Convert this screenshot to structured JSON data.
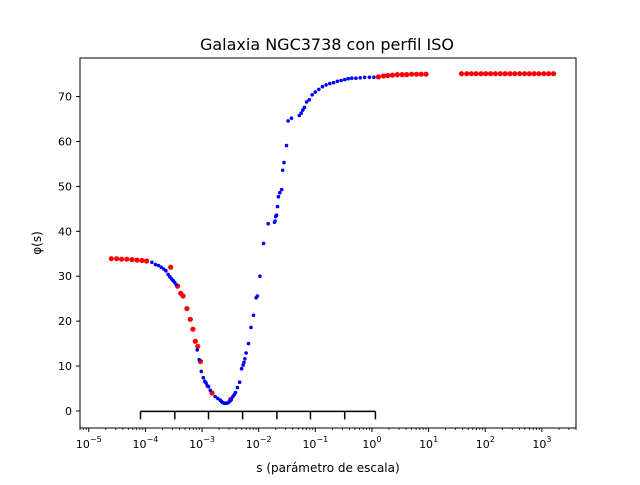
{
  "chart_data": {
    "type": "scatter",
    "title": "Galaxia NGC3738 con perfil ISO",
    "xlabel": "s (parámetro de escala)",
    "ylabel": "φ(s)",
    "xscale": "log",
    "xlim": [
      7e-06,
      4000.0
    ],
    "ylim": [
      -3.8,
      78.6
    ],
    "xticks": [
      {
        "value": 1e-05,
        "base": "10",
        "exp": "−5"
      },
      {
        "value": 0.0001,
        "base": "10",
        "exp": "−4"
      },
      {
        "value": 0.001,
        "base": "10",
        "exp": "−3"
      },
      {
        "value": 0.01,
        "base": "10",
        "exp": "−2"
      },
      {
        "value": 0.1,
        "base": "10",
        "exp": "−1"
      },
      {
        "value": 1.0,
        "base": "10",
        "exp": "0"
      },
      {
        "value": 10.0,
        "base": "10",
        "exp": "1"
      },
      {
        "value": 100.0,
        "base": "10",
        "exp": "2"
      },
      {
        "value": 1000.0,
        "base": "10",
        "exp": "3"
      }
    ],
    "yticks": [
      {
        "value": 0,
        "label": "0"
      },
      {
        "value": 10,
        "label": "10"
      },
      {
        "value": 20,
        "label": "20"
      },
      {
        "value": 30,
        "label": "30"
      },
      {
        "value": 40,
        "label": "40"
      },
      {
        "value": 50,
        "label": "50"
      },
      {
        "value": 60,
        "label": "60"
      },
      {
        "value": 70,
        "label": "70"
      }
    ],
    "grid": false,
    "colors": {
      "red_points": "#ff0000",
      "blue_points": "#0000ff",
      "axes": "#000000"
    },
    "series": [
      {
        "color": "#ff0000",
        "marker": "large-dot",
        "x": [
          2.5e-05,
          3.1e-05,
          3.8e-05,
          4.7e-05,
          5.8e-05,
          7.1e-05,
          8.7e-05,
          0.000105,
          0.00028,
          0.00037,
          0.00042,
          0.00046,
          0.00054,
          0.00062,
          0.00069,
          0.00076,
          0.00084,
          0.00094,
          0.0015,
          0.0032,
          1.3,
          1.6,
          1.9,
          2.3,
          2.8,
          3.4,
          4.1,
          5.0,
          6.1,
          7.4,
          9.0,
          38,
          47,
          57,
          69,
          84,
          102,
          124,
          151,
          184,
          224,
          273,
          332,
          404,
          492,
          599,
          729,
          887,
          1080,
          1315,
          1600
        ],
        "y": [
          33.9,
          33.9,
          33.8,
          33.8,
          33.7,
          33.6,
          33.5,
          33.4,
          32.0,
          27.8,
          26.2,
          25.6,
          22.8,
          20.4,
          18.2,
          15.5,
          14.4,
          11.0,
          4.0,
          2.6,
          74.4,
          74.6,
          74.7,
          74.8,
          74.9,
          74.9,
          74.9,
          75.0,
          75.0,
          75.0,
          75.0,
          75.1,
          75.1,
          75.1,
          75.1,
          75.1,
          75.1,
          75.1,
          75.1,
          75.1,
          75.1,
          75.1,
          75.1,
          75.1,
          75.1,
          75.1,
          75.1,
          75.1,
          75.1,
          75.1,
          75.1
        ]
      },
      {
        "color": "#0000ff",
        "marker": "small-dot",
        "x": [
          0.00013,
          0.00015,
          0.00017,
          0.00019,
          0.00021,
          0.00023,
          0.00025,
          0.00027,
          0.00029,
          0.00031,
          0.00033,
          0.00035,
          0.00082,
          0.00089,
          0.00097,
          0.00105,
          0.00112,
          0.00118,
          0.00124,
          0.0013,
          0.0014,
          0.0017,
          0.0019,
          0.0021,
          0.0022,
          0.0023,
          0.0024,
          0.0025,
          0.0026,
          0.0027,
          0.0028,
          0.0029,
          0.003,
          0.0031,
          0.0033,
          0.0035,
          0.0037,
          0.0039,
          0.0042,
          0.0046,
          0.005,
          0.0053,
          0.0055,
          0.0057,
          0.006,
          0.0066,
          0.0073,
          0.0081,
          0.009,
          0.0095,
          0.0105,
          0.0122,
          0.0147,
          0.019,
          0.0195,
          0.02,
          0.0207,
          0.0215,
          0.0223,
          0.0236,
          0.0255,
          0.0265,
          0.028,
          0.031,
          0.033,
          0.038,
          0.052,
          0.056,
          0.06,
          0.064,
          0.07,
          0.078,
          0.088,
          0.1,
          0.115,
          0.133,
          0.155,
          0.18,
          0.21,
          0.245,
          0.285,
          0.33,
          0.38,
          0.44,
          0.52,
          0.62,
          0.74,
          0.9,
          1.08
        ],
        "y": [
          33.1,
          32.6,
          32.4,
          32.0,
          31.6,
          31.2,
          30.4,
          29.9,
          29.4,
          29.0,
          28.6,
          28.1,
          13.6,
          11.4,
          8.8,
          7.4,
          6.6,
          6.2,
          5.6,
          5.4,
          4.6,
          3.2,
          2.8,
          2.4,
          2.1,
          1.9,
          1.8,
          1.7,
          1.7,
          1.7,
          1.8,
          1.9,
          2.0,
          2.2,
          2.6,
          3.2,
          3.6,
          4.1,
          5.2,
          6.4,
          9.4,
          10.2,
          10.8,
          11.6,
          12.9,
          15.0,
          18.6,
          21.3,
          25.2,
          25.6,
          30.0,
          37.3,
          41.7,
          42.0,
          42.3,
          43.3,
          43.6,
          45.5,
          47.7,
          48.6,
          49.3,
          53.6,
          55.3,
          59.1,
          64.6,
          65.2,
          65.8,
          66.3,
          67.0,
          67.6,
          68.8,
          69.3,
          70.4,
          71.0,
          71.6,
          72.2,
          72.6,
          72.9,
          73.1,
          73.4,
          73.6,
          73.8,
          74.0,
          74.1,
          74.1,
          74.2,
          74.3,
          74.3,
          74.3
        ]
      }
    ],
    "annotation_scale_bar": {
      "x_start": 8.2e-05,
      "x_end": 1.15,
      "y": -0.1,
      "tick_positions": [
        8.2e-05,
        0.00033,
        0.0013,
        0.0052,
        0.021,
        0.082,
        0.33,
        1.15
      ]
    }
  }
}
